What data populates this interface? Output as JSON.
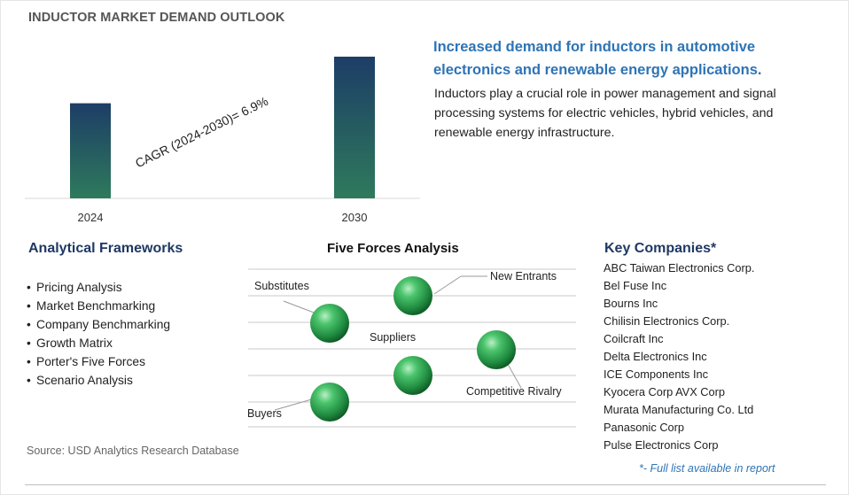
{
  "title": "INDUCTOR MARKET DEMAND OUTLOOK",
  "chart_data": {
    "type": "bar",
    "categories": [
      "2024",
      "2030"
    ],
    "values": [
      1.0,
      1.49
    ],
    "annotation": "CAGR (2024-2030)=   6.9%",
    "xlabel": "",
    "ylabel": "",
    "grid": false,
    "colors": [
      "#2e6b5a",
      "#1d3e63"
    ]
  },
  "headline": "Increased demand for inductors in automotive electronics and renewable energy applications.",
  "description": "Inductors play a crucial role in power management and signal processing systems for electric vehicles, hybrid vehicles, and renewable energy infrastructure.",
  "frameworks": {
    "title": "Analytical Frameworks",
    "items": [
      "Pricing Analysis",
      "Market Benchmarking",
      "Company Benchmarking",
      "Growth Matrix",
      "Porter's Five Forces",
      "Scenario Analysis"
    ]
  },
  "five_forces": {
    "title": "Five Forces Analysis",
    "labels": {
      "substitutes": "Substitutes",
      "new_entrants": "New Entrants",
      "suppliers": "Suppliers",
      "competitive_rivalry": "Competitive Rivalry",
      "buyers": "Buyers"
    },
    "sphere_color": "#2e9e4f"
  },
  "companies": {
    "title": "Key Companies*",
    "items": [
      "ABC Taiwan Electronics Corp.",
      "Bel Fuse Inc",
      "Bourns Inc",
      "Chilisin Electronics Corp.",
      "Coilcraft Inc",
      "Delta Electronics Inc",
      "ICE Components Inc",
      "Kyocera Corp AVX Corp",
      "Murata Manufacturing Co. Ltd",
      "Panasonic Corp",
      "Pulse Electronics Corp"
    ],
    "footnote": "*- Full list available in report"
  },
  "source": "Source: USD Analytics Research Database"
}
